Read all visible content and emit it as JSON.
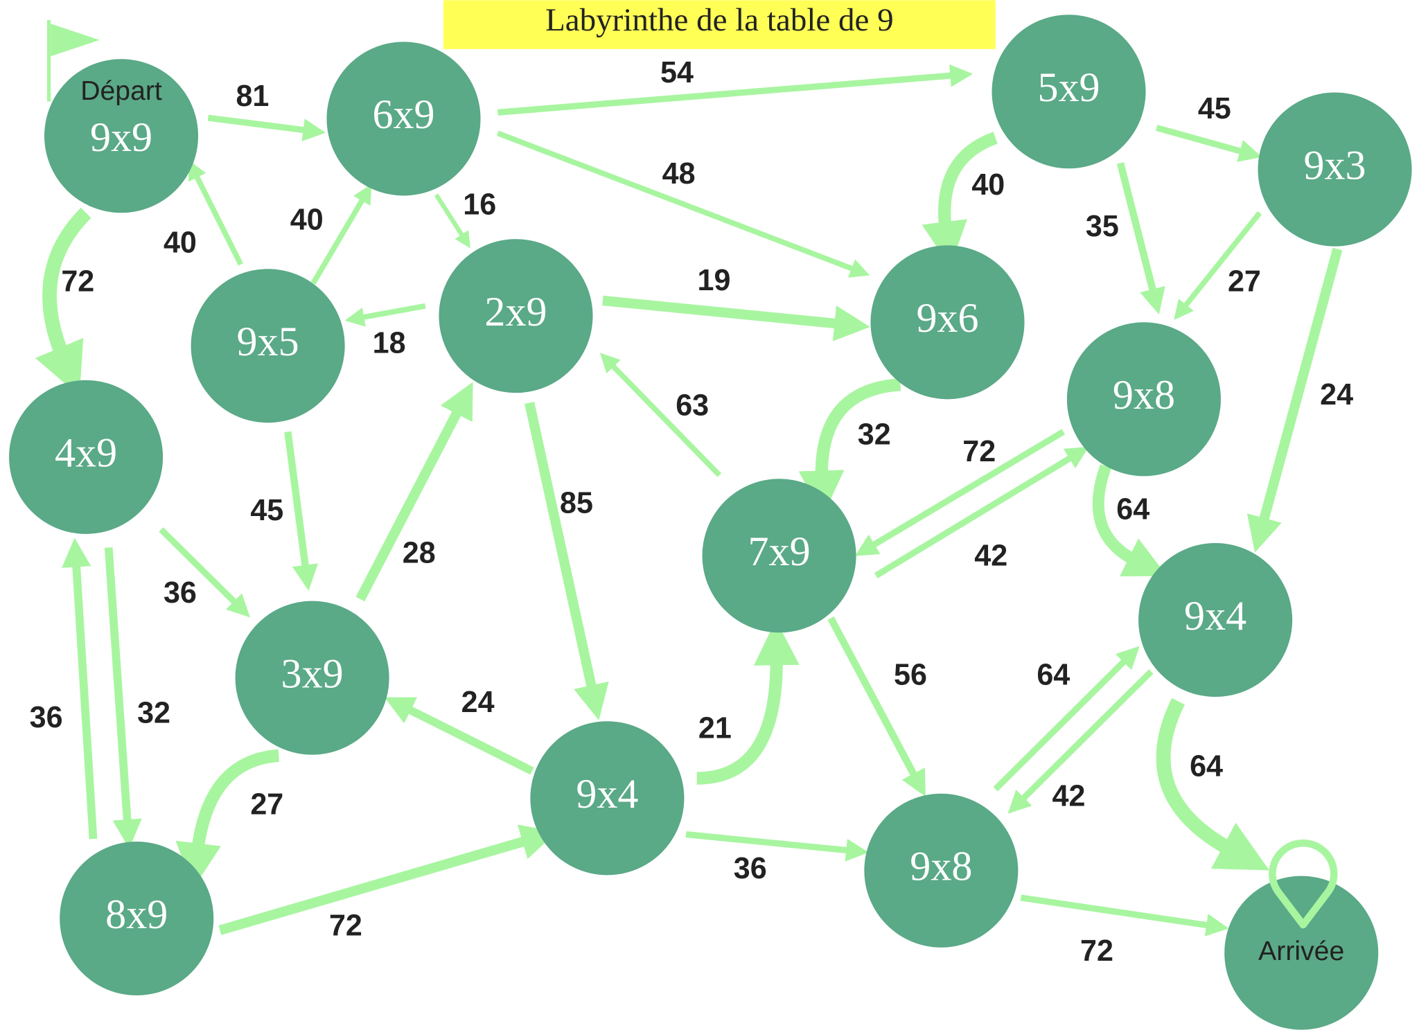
{
  "title": "Labyrinthe de la table de 9",
  "nodes": [
    {
      "caption": "Départ",
      "label": "9x9"
    },
    {
      "label": "6x9"
    },
    {
      "label": "5x9"
    },
    {
      "label": "9x3"
    },
    {
      "label": "4x9"
    },
    {
      "label": "9x5"
    },
    {
      "label": "2x9"
    },
    {
      "label": "9x6"
    },
    {
      "label": "9x8"
    },
    {
      "label": "7x9"
    },
    {
      "label": "9x4"
    },
    {
      "label": "3x9"
    },
    {
      "label": "9x4"
    },
    {
      "label": "9x8"
    },
    {
      "label": "8x9"
    },
    {
      "caption": "Arrivée"
    }
  ],
  "edges": [
    {
      "label": 81
    },
    {
      "label": 54
    },
    {
      "label": 48
    },
    {
      "label": 16
    },
    {
      "label": 40
    },
    {
      "label": 40
    },
    {
      "label": 18
    },
    {
      "label": 19
    },
    {
      "label": 72
    },
    {
      "label": 45
    },
    {
      "label": 40
    },
    {
      "label": 35
    },
    {
      "label": 27
    },
    {
      "label": 24
    },
    {
      "label": 45
    },
    {
      "label": 28
    },
    {
      "label": 85
    },
    {
      "label": 63
    },
    {
      "label": 32
    },
    {
      "label": 72
    },
    {
      "label": 42
    },
    {
      "label": 64
    },
    {
      "label": 36
    },
    {
      "label": 36
    },
    {
      "label": 32
    },
    {
      "label": 24
    },
    {
      "label": 27
    },
    {
      "label": 21
    },
    {
      "label": 56
    },
    {
      "label": 64
    },
    {
      "label": 42
    },
    {
      "label": 64
    },
    {
      "label": 72
    },
    {
      "label": 36
    },
    {
      "label": 72
    }
  ]
}
